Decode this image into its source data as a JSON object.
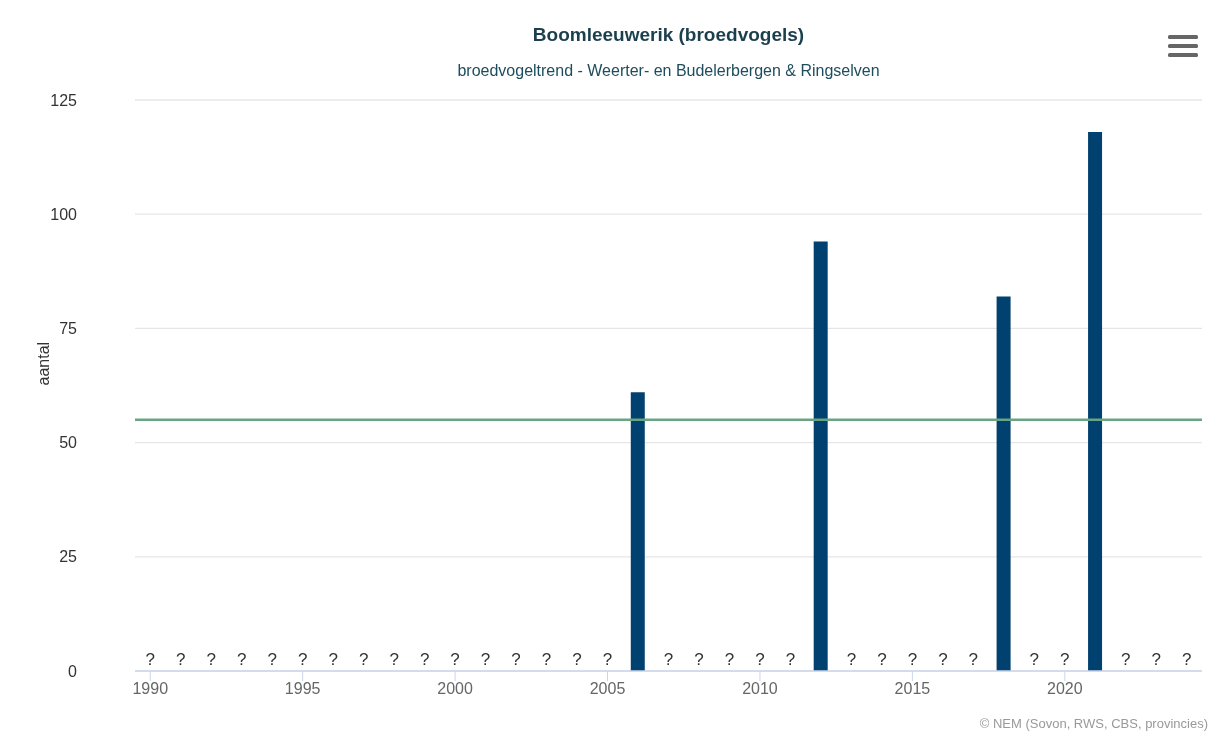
{
  "chart_data": {
    "type": "bar",
    "title": "Boomleeuwerik (broedvogels)",
    "subtitle": "broedvogeltrend - Weerter- en Budelerbergen & Ringselven",
    "ylabel": "aantal",
    "categories": [
      "1990",
      null,
      null,
      null,
      null,
      "1995",
      null,
      null,
      null,
      null,
      "2000",
      null,
      null,
      null,
      null,
      "2005",
      null,
      null,
      null,
      null,
      "2010",
      null,
      null,
      null,
      null,
      "2015",
      null,
      null,
      null,
      null,
      "2020",
      null,
      null,
      null,
      null
    ],
    "series": [
      {
        "color": "#00416f",
        "values": [
          null,
          null,
          null,
          null,
          null,
          null,
          null,
          null,
          null,
          null,
          null,
          null,
          null,
          null,
          null,
          null,
          61,
          null,
          null,
          null,
          null,
          null,
          94,
          null,
          null,
          null,
          null,
          null,
          82,
          null,
          null,
          118,
          null,
          null,
          null
        ],
        "value_labels": [
          "?",
          "?",
          "?",
          "?",
          "?",
          "?",
          "?",
          "?",
          "?",
          "?",
          "?",
          "?",
          "?",
          "?",
          "?",
          "?",
          null,
          "?",
          "?",
          "?",
          "?",
          "?",
          null,
          "?",
          "?",
          "?",
          "?",
          "?",
          null,
          "?",
          "?",
          null,
          "?",
          "?",
          "?"
        ]
      }
    ],
    "ref_lines": [
      {
        "axis": "y",
        "value": 55,
        "color": "#6aa583"
      }
    ],
    "ylim": [
      0,
      125
    ],
    "yticks": [
      0,
      25,
      50,
      75,
      100,
      125
    ],
    "grid": "y",
    "annotations": [
      "© NEM (Sovon, RWS, CBS, provincies)"
    ]
  }
}
